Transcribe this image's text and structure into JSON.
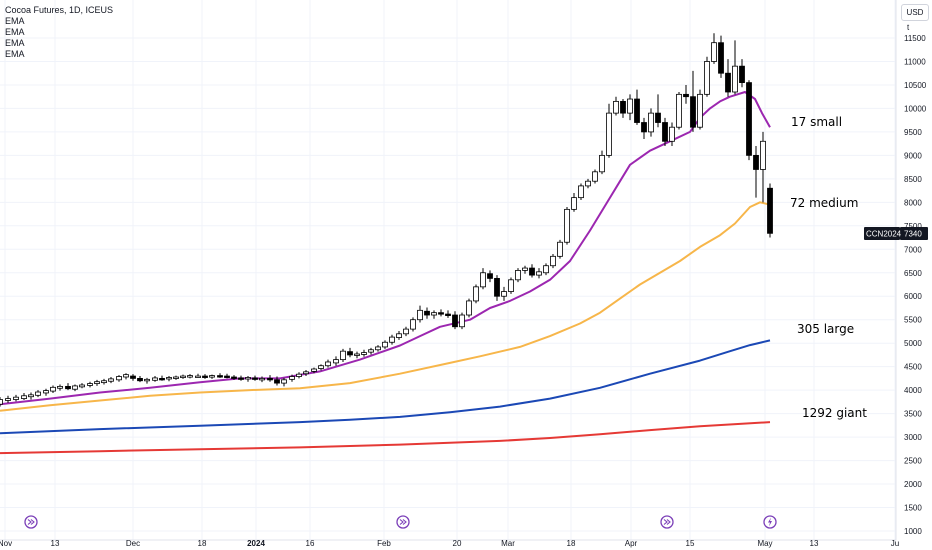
{
  "header": {
    "title": "Cocoa Futures, 1D, ICEUS",
    "legend_items": [
      "EMA",
      "EMA",
      "EMA",
      "EMA"
    ],
    "currency": "USD",
    "currency_sub": "t"
  },
  "price_tag": {
    "symbol": "CCN2024",
    "value": "7340"
  },
  "annotations": [
    {
      "label": "17 small",
      "x": 815,
      "y": 123
    },
    {
      "label": "72 medium",
      "x": 822,
      "y": 204
    },
    {
      "label": "305 large",
      "x": 823,
      "y": 330
    },
    {
      "label": "1292 giant",
      "x": 833,
      "y": 414
    }
  ],
  "event_markers": [
    {
      "kind": "dividend",
      "icon": "double-arrow-icon",
      "x": 31
    },
    {
      "kind": "dividend",
      "icon": "double-arrow-icon",
      "x": 403
    },
    {
      "kind": "dividend",
      "icon": "double-arrow-icon",
      "x": 667
    },
    {
      "kind": "earnings",
      "icon": "lightning-icon",
      "x": 770
    }
  ],
  "chart_data": {
    "type": "line",
    "title": "Cocoa Futures, 1D, ICEUS",
    "ylim": [
      1000,
      12000
    ],
    "y_ticks": [
      1000,
      1500,
      2000,
      2500,
      3000,
      3500,
      4000,
      4500,
      5000,
      5500,
      6000,
      6500,
      7000,
      7500,
      8000,
      8500,
      9000,
      9500,
      10000,
      10500,
      11000,
      11500
    ],
    "x_ticks": [
      {
        "label": "Nov",
        "bold": false,
        "x": 5
      },
      {
        "label": "13",
        "bold": false,
        "x": 55
      },
      {
        "label": "Dec",
        "bold": false,
        "x": 133
      },
      {
        "label": "18",
        "bold": false,
        "x": 202
      },
      {
        "label": "2024",
        "bold": true,
        "x": 256
      },
      {
        "label": "16",
        "bold": false,
        "x": 310
      },
      {
        "label": "Feb",
        "bold": false,
        "x": 384
      },
      {
        "label": "20",
        "bold": false,
        "x": 457
      },
      {
        "label": "Mar",
        "bold": false,
        "x": 508
      },
      {
        "label": "18",
        "bold": false,
        "x": 571
      },
      {
        "label": "Apr",
        "bold": false,
        "x": 631
      },
      {
        "label": "15",
        "bold": false,
        "x": 690
      },
      {
        "label": "May",
        "bold": false,
        "x": 765
      },
      {
        "label": "13",
        "bold": false,
        "x": 814
      },
      {
        "label": "Ju",
        "bold": false,
        "x": 895
      }
    ],
    "series": [
      {
        "name": "EMA",
        "color": "#9c27b0",
        "points": [
          [
            0,
            3700
          ],
          [
            50,
            3820
          ],
          [
            100,
            3950
          ],
          [
            150,
            4050
          ],
          [
            200,
            4170
          ],
          [
            240,
            4250
          ],
          [
            280,
            4250
          ],
          [
            320,
            4400
          ],
          [
            360,
            4650
          ],
          [
            400,
            4950
          ],
          [
            420,
            5150
          ],
          [
            440,
            5350
          ],
          [
            470,
            5500
          ],
          [
            490,
            5750
          ],
          [
            510,
            5900
          ],
          [
            530,
            6100
          ],
          [
            550,
            6350
          ],
          [
            570,
            6750
          ],
          [
            590,
            7400
          ],
          [
            610,
            8100
          ],
          [
            620,
            8450
          ],
          [
            630,
            8800
          ],
          [
            650,
            9100
          ],
          [
            670,
            9300
          ],
          [
            690,
            9500
          ],
          [
            700,
            9800
          ],
          [
            710,
            10000
          ],
          [
            720,
            10150
          ],
          [
            730,
            10250
          ],
          [
            745,
            10350
          ],
          [
            755,
            10200
          ],
          [
            762,
            9900
          ],
          [
            770,
            9600
          ]
        ]
      },
      {
        "name": "EMA",
        "color": "#f7b64a",
        "points": [
          [
            0,
            3560
          ],
          [
            50,
            3680
          ],
          [
            100,
            3780
          ],
          [
            150,
            3880
          ],
          [
            200,
            3950
          ],
          [
            250,
            4000
          ],
          [
            300,
            4040
          ],
          [
            350,
            4150
          ],
          [
            400,
            4350
          ],
          [
            450,
            4580
          ],
          [
            480,
            4720
          ],
          [
            520,
            4920
          ],
          [
            550,
            5150
          ],
          [
            580,
            5420
          ],
          [
            600,
            5650
          ],
          [
            620,
            5950
          ],
          [
            640,
            6250
          ],
          [
            660,
            6500
          ],
          [
            680,
            6750
          ],
          [
            700,
            7050
          ],
          [
            720,
            7300
          ],
          [
            735,
            7550
          ],
          [
            750,
            7900
          ],
          [
            760,
            8000
          ],
          [
            770,
            7950
          ]
        ]
      },
      {
        "name": "EMA",
        "color": "#1b48b5",
        "points": [
          [
            0,
            3080
          ],
          [
            100,
            3170
          ],
          [
            200,
            3240
          ],
          [
            300,
            3320
          ],
          [
            350,
            3370
          ],
          [
            400,
            3430
          ],
          [
            450,
            3530
          ],
          [
            500,
            3650
          ],
          [
            550,
            3820
          ],
          [
            600,
            4050
          ],
          [
            650,
            4350
          ],
          [
            700,
            4630
          ],
          [
            730,
            4830
          ],
          [
            750,
            4960
          ],
          [
            770,
            5060
          ]
        ]
      },
      {
        "name": "EMA",
        "color": "#e53935",
        "points": [
          [
            0,
            2660
          ],
          [
            100,
            2700
          ],
          [
            200,
            2740
          ],
          [
            300,
            2780
          ],
          [
            400,
            2840
          ],
          [
            500,
            2920
          ],
          [
            550,
            2980
          ],
          [
            600,
            3060
          ],
          [
            650,
            3150
          ],
          [
            700,
            3230
          ],
          [
            740,
            3280
          ],
          [
            770,
            3320
          ]
        ]
      }
    ],
    "candles": [
      [
        0,
        3700,
        3850,
        3650,
        3800
      ],
      [
        8,
        3780,
        3880,
        3730,
        3820
      ],
      [
        16,
        3800,
        3900,
        3760,
        3850
      ],
      [
        24,
        3820,
        3940,
        3790,
        3880
      ],
      [
        31,
        3860,
        3950,
        3800,
        3900
      ],
      [
        38,
        3890,
        4000,
        3850,
        3960
      ],
      [
        46,
        3940,
        4030,
        3880,
        3990
      ],
      [
        53,
        3980,
        4100,
        3940,
        4060
      ],
      [
        60,
        4040,
        4120,
        3990,
        4080
      ],
      [
        68,
        4080,
        4150,
        4000,
        4030
      ],
      [
        75,
        4020,
        4120,
        3980,
        4090
      ],
      [
        82,
        4070,
        4150,
        4040,
        4110
      ],
      [
        90,
        4100,
        4180,
        4060,
        4140
      ],
      [
        97,
        4140,
        4220,
        4090,
        4180
      ],
      [
        104,
        4160,
        4240,
        4120,
        4200
      ],
      [
        111,
        4190,
        4280,
        4150,
        4240
      ],
      [
        119,
        4220,
        4320,
        4180,
        4290
      ],
      [
        126,
        4280,
        4360,
        4230,
        4330
      ],
      [
        133,
        4300,
        4340,
        4200,
        4250
      ],
      [
        140,
        4250,
        4300,
        4170,
        4200
      ],
      [
        147,
        4200,
        4260,
        4140,
        4230
      ],
      [
        155,
        4210,
        4300,
        4180,
        4260
      ],
      [
        162,
        4250,
        4310,
        4200,
        4240
      ],
      [
        169,
        4240,
        4300,
        4190,
        4270
      ],
      [
        176,
        4260,
        4310,
        4220,
        4280
      ],
      [
        183,
        4270,
        4330,
        4240,
        4300
      ],
      [
        190,
        4290,
        4340,
        4250,
        4310
      ],
      [
        198,
        4300,
        4350,
        4260,
        4300
      ],
      [
        205,
        4300,
        4340,
        4240,
        4270
      ],
      [
        212,
        4280,
        4330,
        4240,
        4310
      ],
      [
        220,
        4310,
        4360,
        4260,
        4300
      ],
      [
        227,
        4300,
        4350,
        4250,
        4280
      ],
      [
        234,
        4280,
        4320,
        4220,
        4260
      ],
      [
        241,
        4260,
        4310,
        4200,
        4240
      ],
      [
        248,
        4240,
        4300,
        4180,
        4270
      ],
      [
        255,
        4260,
        4310,
        4200,
        4230
      ],
      [
        262,
        4230,
        4290,
        4170,
        4250
      ],
      [
        270,
        4250,
        4320,
        4180,
        4220
      ],
      [
        277,
        4220,
        4290,
        4100,
        4150
      ],
      [
        284,
        4150,
        4260,
        4080,
        4220
      ],
      [
        292,
        4230,
        4330,
        4180,
        4290
      ],
      [
        299,
        4290,
        4380,
        4250,
        4340
      ],
      [
        306,
        4350,
        4430,
        4300,
        4390
      ],
      [
        314,
        4400,
        4480,
        4360,
        4450
      ],
      [
        321,
        4460,
        4550,
        4420,
        4520
      ],
      [
        328,
        4520,
        4650,
        4480,
        4600
      ],
      [
        336,
        4580,
        4720,
        4520,
        4650
      ],
      [
        343,
        4650,
        4880,
        4600,
        4830
      ],
      [
        350,
        4820,
        4900,
        4700,
        4750
      ],
      [
        357,
        4740,
        4820,
        4680,
        4770
      ],
      [
        364,
        4760,
        4860,
        4710,
        4800
      ],
      [
        371,
        4810,
        4900,
        4760,
        4860
      ],
      [
        378,
        4860,
        4960,
        4820,
        4920
      ],
      [
        385,
        4920,
        5060,
        4880,
        5020
      ],
      [
        392,
        5020,
        5180,
        4970,
        5130
      ],
      [
        399,
        5120,
        5260,
        5070,
        5200
      ],
      [
        406,
        5200,
        5350,
        5150,
        5300
      ],
      [
        413,
        5300,
        5550,
        5250,
        5500
      ],
      [
        420,
        5500,
        5800,
        5440,
        5700
      ],
      [
        427,
        5680,
        5760,
        5520,
        5600
      ],
      [
        434,
        5600,
        5700,
        5520,
        5650
      ],
      [
        441,
        5650,
        5720,
        5570,
        5620
      ],
      [
        448,
        5620,
        5700,
        5540,
        5600
      ],
      [
        455,
        5600,
        5680,
        5300,
        5350
      ],
      [
        462,
        5350,
        5650,
        5300,
        5600
      ],
      [
        469,
        5600,
        5950,
        5550,
        5900
      ],
      [
        476,
        5900,
        6250,
        5850,
        6200
      ],
      [
        483,
        6200,
        6600,
        6150,
        6500
      ],
      [
        490,
        6480,
        6550,
        6300,
        6380
      ],
      [
        497,
        6380,
        6450,
        5900,
        6000
      ],
      [
        504,
        6000,
        6200,
        5900,
        6100
      ],
      [
        511,
        6100,
        6400,
        6050,
        6350
      ],
      [
        518,
        6350,
        6600,
        6300,
        6550
      ],
      [
        525,
        6550,
        6650,
        6480,
        6600
      ],
      [
        532,
        6600,
        6680,
        6400,
        6450
      ],
      [
        539,
        6450,
        6600,
        6380,
        6520
      ],
      [
        546,
        6500,
        6700,
        6450,
        6650
      ],
      [
        553,
        6650,
        6900,
        6600,
        6850
      ],
      [
        560,
        6850,
        7200,
        6800,
        7150
      ],
      [
        567,
        7150,
        7900,
        7100,
        7850
      ],
      [
        574,
        7850,
        8200,
        7800,
        8100
      ],
      [
        581,
        8100,
        8400,
        8050,
        8350
      ],
      [
        588,
        8350,
        8500,
        8300,
        8450
      ],
      [
        595,
        8450,
        8700,
        8400,
        8650
      ],
      [
        602,
        8650,
        9100,
        8600,
        9000
      ],
      [
        609,
        9000,
        10100,
        8950,
        9900
      ],
      [
        616,
        9900,
        10250,
        9850,
        10150
      ],
      [
        623,
        10150,
        10200,
        9800,
        9900
      ],
      [
        630,
        9900,
        10300,
        9750,
        10200
      ],
      [
        637,
        10200,
        10400,
        9650,
        9700
      ],
      [
        644,
        9700,
        9800,
        9350,
        9500
      ],
      [
        651,
        9500,
        10000,
        9400,
        9900
      ],
      [
        658,
        9900,
        10300,
        9600,
        9700
      ],
      [
        665,
        9700,
        9800,
        9200,
        9300
      ],
      [
        672,
        9300,
        9700,
        9200,
        9600
      ],
      [
        679,
        9600,
        10350,
        9550,
        10300
      ],
      [
        686,
        10300,
        10500,
        10100,
        10250
      ],
      [
        693,
        10250,
        10800,
        9500,
        9600
      ],
      [
        700,
        9600,
        10400,
        9550,
        10300
      ],
      [
        707,
        10300,
        11100,
        10250,
        11000
      ],
      [
        714,
        11000,
        11600,
        10950,
        11400
      ],
      [
        721,
        11400,
        11550,
        10650,
        10750
      ],
      [
        728,
        10750,
        11050,
        10250,
        10350
      ],
      [
        735,
        10350,
        11450,
        10300,
        10900
      ],
      [
        742,
        10900,
        11050,
        10450,
        10550
      ],
      [
        749,
        10550,
        10600,
        8900,
        9000
      ],
      [
        756,
        9000,
        9200,
        8100,
        8700
      ],
      [
        763,
        8700,
        9500,
        8000,
        9300
      ],
      [
        770,
        8300,
        8400,
        7250,
        7340
      ]
    ]
  }
}
